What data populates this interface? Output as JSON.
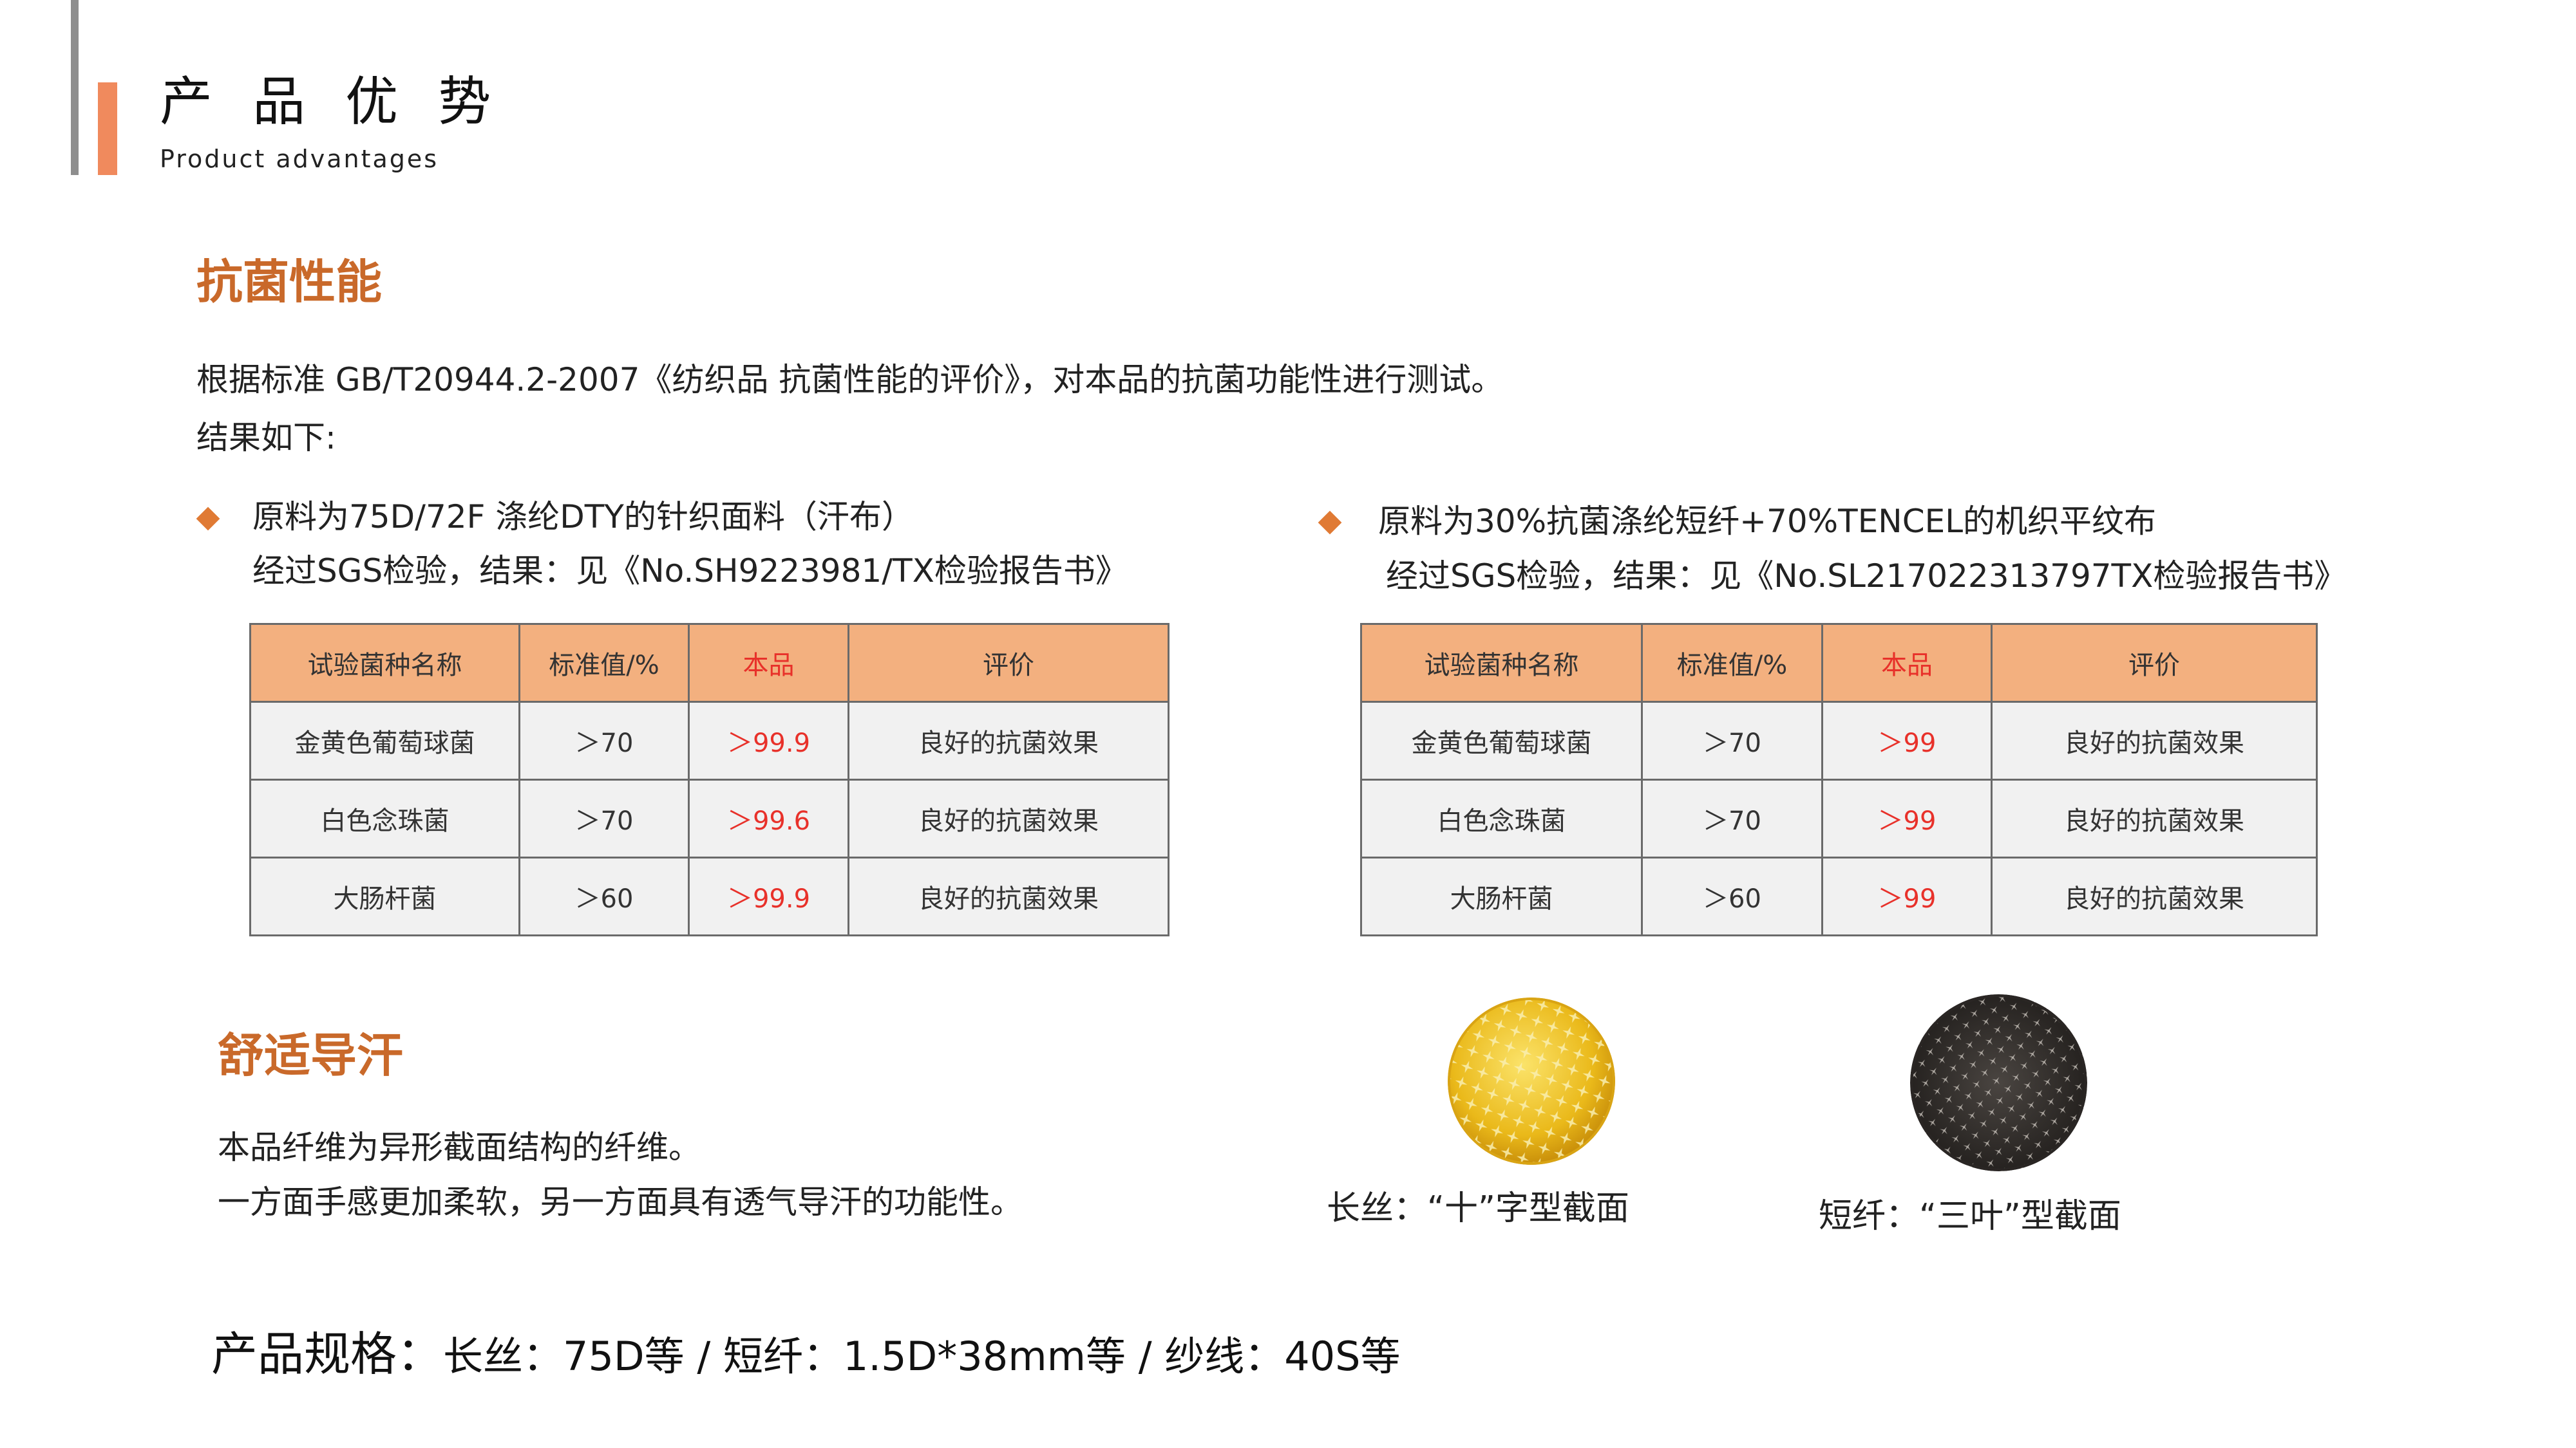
{
  "header": {
    "title": "产 品 优 势",
    "subtitle": "Product advantages"
  },
  "antibacterial": {
    "heading": "抗菌性能",
    "intro_line1": "根据标准 GB/T20944.2-2007《纺织品 抗菌性能的评价》，对本品的抗菌功能性进行测试。",
    "intro_line2": "结果如下:",
    "left": {
      "line1": "原料为75D/72F 涤纶DTY的针织面料（汗布）",
      "line2": "经过SGS检验，结果：见《No.SH9223981/TX检验报告书》",
      "headers": [
        "试验菌种名称",
        "标准值/%",
        "本品",
        "评价"
      ],
      "rows": [
        [
          "金黄色葡萄球菌",
          "＞70",
          "＞99.9",
          "良好的抗菌效果"
        ],
        [
          "白色念珠菌",
          "＞70",
          "＞99.6",
          "良好的抗菌效果"
        ],
        [
          "大肠杆菌",
          "＞60",
          "＞99.9",
          "良好的抗菌效果"
        ]
      ]
    },
    "right": {
      "line1": "原料为30%抗菌涤纶短纤+70%TENCEL的机织平纹布",
      "line2": "经过SGS检验，结果：见《No.SL217022313797TX检验报告书》",
      "headers": [
        "试验菌种名称",
        "标准值/%",
        "本品",
        "评价"
      ],
      "rows": [
        [
          "金黄色葡萄球菌",
          "＞70",
          "＞99",
          "良好的抗菌效果"
        ],
        [
          "白色念珠菌",
          "＞70",
          "＞99",
          "良好的抗菌效果"
        ],
        [
          "大肠杆菌",
          "＞60",
          "＞99",
          "良好的抗菌效果"
        ]
      ]
    }
  },
  "comfort": {
    "heading": "舒适导汗",
    "line1": "本品纤维为异形截面结构的纤维。",
    "line2": "一方面手感更加柔软，另一方面具有透气导汗的功能性。",
    "image1_caption": "长丝：“十”字型截面",
    "image2_caption": "短纤：“三叶”型截面"
  },
  "spec": {
    "label": "产品规格：",
    "value": "长丝：75D等 / 短纤：1.5D*38mm等 / 纱线：40S等"
  },
  "colors": {
    "accent_orange": "#f08a5d",
    "heading_orange": "#c9692a",
    "table_header": "#f3b07f",
    "highlight_red": "#e8312a"
  }
}
